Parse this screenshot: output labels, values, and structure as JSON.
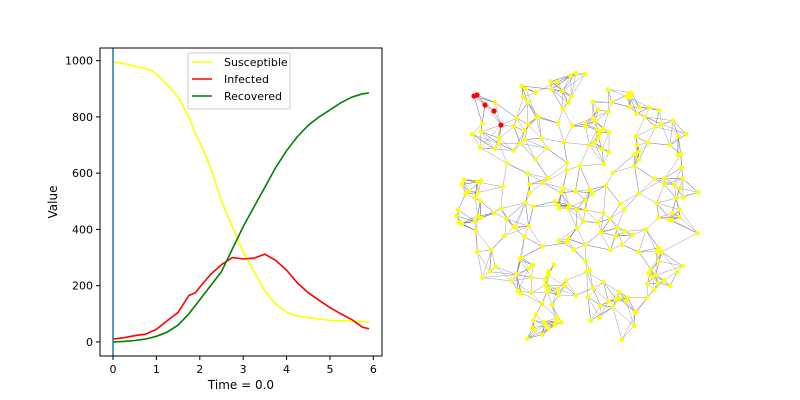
{
  "chart_data": [
    {
      "type": "line",
      "xlabel": "Time = 0.0",
      "ylabel": "Value",
      "xlim": [
        -0.3,
        6.2
      ],
      "ylim": [
        -50,
        1045
      ],
      "xticks": [
        "0",
        "1",
        "2",
        "3",
        "4",
        "5",
        "6"
      ],
      "yticks": [
        "0",
        "200",
        "400",
        "600",
        "800",
        "1000"
      ],
      "legend_position": "upper-center",
      "grid": false,
      "current_time_marker": {
        "x": 0.0,
        "color": "#1f77b4"
      },
      "series": [
        {
          "name": "Susceptible",
          "color": "#ffff00",
          "x": [
            0,
            0.25,
            0.5,
            0.75,
            0.9,
            1.0,
            1.25,
            1.5,
            1.75,
            1.9,
            2.0,
            2.25,
            2.5,
            2.75,
            3.0,
            3.25,
            3.5,
            3.75,
            4.0,
            4.25,
            4.5,
            4.75,
            5.0,
            5.25,
            5.5,
            5.75,
            5.9
          ],
          "y": [
            995,
            990,
            980,
            972,
            965,
            952,
            915,
            870,
            800,
            740,
            710,
            620,
            500,
            410,
            320,
            250,
            180,
            135,
            105,
            92,
            86,
            82,
            77,
            75,
            74,
            72,
            71
          ]
        },
        {
          "name": "Infected",
          "color": "#ff0000",
          "x": [
            0,
            0.25,
            0.5,
            0.75,
            1.0,
            1.25,
            1.5,
            1.75,
            1.9,
            2.0,
            2.25,
            2.5,
            2.75,
            3.0,
            3.25,
            3.5,
            3.75,
            4.0,
            4.25,
            4.5,
            4.75,
            5.0,
            5.25,
            5.5,
            5.75,
            5.9
          ],
          "y": [
            10,
            15,
            22,
            28,
            45,
            75,
            105,
            165,
            175,
            195,
            240,
            275,
            300,
            295,
            298,
            312,
            290,
            255,
            210,
            175,
            148,
            122,
            100,
            80,
            52,
            47
          ]
        },
        {
          "name": "Recovered",
          "color": "#008000",
          "x": [
            0,
            0.25,
            0.5,
            0.75,
            1.0,
            1.25,
            1.5,
            1.75,
            2.0,
            2.25,
            2.5,
            2.75,
            3.0,
            3.25,
            3.5,
            3.75,
            4.0,
            4.25,
            4.5,
            4.75,
            5.0,
            5.25,
            5.5,
            5.75,
            5.9
          ],
          "y": [
            0,
            2,
            5,
            10,
            20,
            35,
            60,
            100,
            150,
            200,
            250,
            330,
            410,
            480,
            550,
            620,
            680,
            730,
            770,
            800,
            825,
            850,
            870,
            882,
            885
          ]
        }
      ]
    },
    {
      "type": "scatter",
      "description_free": true,
      "node_color": "#ffff00",
      "infected_node_color": "#ff0000",
      "edge_color": "#7a7a9a",
      "node_count": 260,
      "infected_count": 5
    }
  ]
}
